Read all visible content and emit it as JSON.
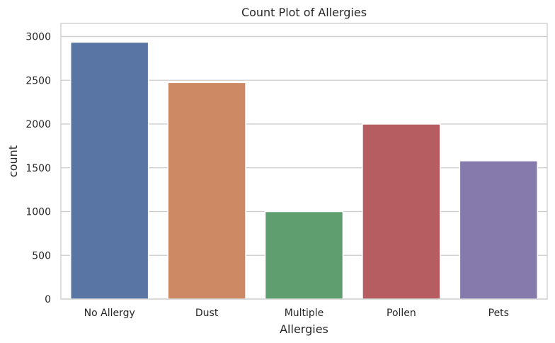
{
  "chart_data": {
    "type": "bar",
    "title": "Count Plot of Allergies",
    "xlabel": "Allergies",
    "ylabel": "count",
    "categories": [
      "No Allergy",
      "Dust",
      "Multiple",
      "Pollen",
      "Pets"
    ],
    "values": [
      2935,
      2475,
      1000,
      2000,
      1580
    ],
    "colors": [
      "#5975a4",
      "#cc8963",
      "#5f9e6e",
      "#b55d60",
      "#857aab"
    ],
    "ylim": [
      0,
      3150
    ],
    "yticks": [
      0,
      500,
      1000,
      1500,
      2000,
      2500,
      3000
    ],
    "grid": true,
    "style": "seaborn-whitegrid"
  }
}
